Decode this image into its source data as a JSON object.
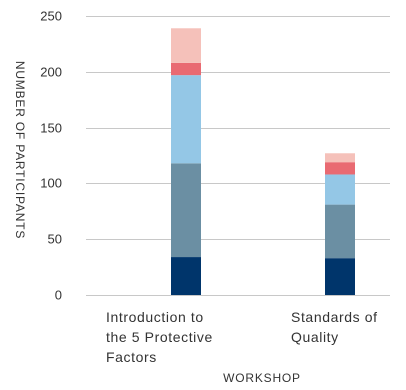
{
  "chart_data": {
    "type": "bar",
    "stacked": true,
    "categories": [
      [
        "Introduction to",
        "the 5 Protective",
        "Factors"
      ],
      [
        "Standards of",
        "Quality"
      ]
    ],
    "series": [
      {
        "color": "#00356b",
        "values": [
          34,
          33
        ]
      },
      {
        "color": "#6b8fa3",
        "values": [
          84,
          48
        ]
      },
      {
        "color": "#94c7e6",
        "values": [
          79,
          27
        ]
      },
      {
        "color": "#e96a72",
        "values": [
          11,
          11
        ]
      },
      {
        "color": "#f5c1ba",
        "values": [
          31,
          8
        ]
      }
    ],
    "ylim": [
      0,
      250
    ],
    "yticks": [
      0,
      50,
      100,
      150,
      200,
      250
    ],
    "xlabel": "WORKSHOP",
    "ylabel": "NUMBER OF PARTICIPANTS",
    "grid": true,
    "gridColor": "#c8c8c8"
  }
}
